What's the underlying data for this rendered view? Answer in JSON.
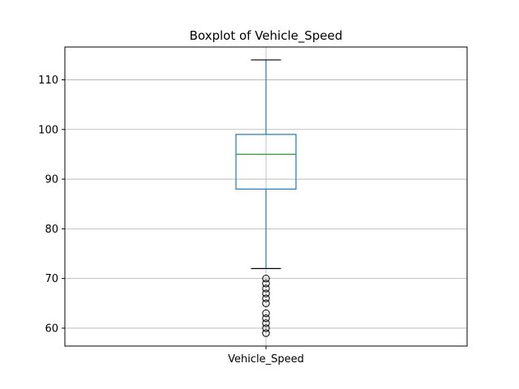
{
  "chart_data": {
    "type": "boxplot",
    "title": "Boxplot of Vehicle_Speed",
    "xlabel": "",
    "ylabel": "",
    "categories": [
      "Vehicle_Speed"
    ],
    "ylim": [
      56.4,
      116.6
    ],
    "yticks": [
      60,
      70,
      80,
      90,
      100,
      110
    ],
    "grid": true,
    "boxes": [
      {
        "category": "Vehicle_Speed",
        "whisker_low": 72,
        "q1": 88,
        "median": 95,
        "q3": 99,
        "whisker_high": 114,
        "outliers": [
          70,
          69,
          68,
          67,
          66,
          65,
          63,
          62,
          61,
          60,
          59
        ]
      }
    ],
    "colors": {
      "box": "#1f77b4",
      "median": "#2ca02c",
      "grid": "#b0b0b0"
    }
  }
}
